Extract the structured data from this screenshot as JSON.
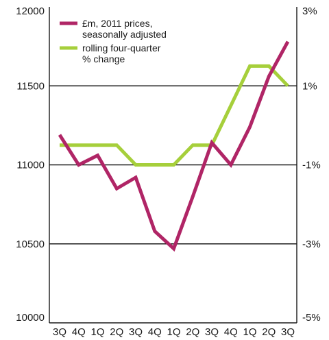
{
  "chart_data": {
    "type": "line",
    "categories": [
      "3Q",
      "4Q",
      "1Q",
      "2Q",
      "3Q",
      "4Q",
      "1Q",
      "2Q",
      "3Q",
      "4Q",
      "1Q",
      "2Q",
      "3Q"
    ],
    "y_left": {
      "ticks": [
        "10000",
        "10500",
        "11000",
        "11500",
        "12000"
      ],
      "range": [
        10000,
        12000
      ]
    },
    "y_right": {
      "ticks": [
        "-5%",
        "-3%",
        "-1%",
        "1%",
        "3%"
      ],
      "range": [
        -5,
        3
      ]
    },
    "gridlines_at": [
      10500,
      11000,
      11500
    ],
    "legend_position": "top-left",
    "series": [
      {
        "name": "£m, 2011 prices, seasonally adjusted",
        "legend_lines": [
          "£m, 2011 prices,",
          "seasonally adjusted"
        ],
        "axis": "left",
        "color": "#b02566",
        "values": [
          11190,
          11000,
          11060,
          10850,
          10920,
          10580,
          10470,
          10800,
          11140,
          11000,
          11240,
          11560,
          11780
        ]
      },
      {
        "name": "rolling four-quarter % change",
        "legend_lines": [
          "rolling four-quarter",
          "% change"
        ],
        "axis": "right",
        "color": "#a6cf3b",
        "values": [
          -0.5,
          -0.5,
          -0.5,
          -0.5,
          -1.0,
          -1.0,
          -1.0,
          -0.5,
          -0.5,
          0.5,
          1.5,
          1.5,
          1.0
        ]
      }
    ]
  }
}
